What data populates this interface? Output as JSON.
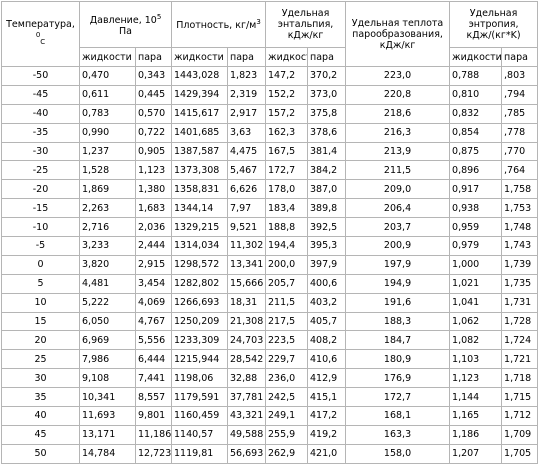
{
  "table": {
    "header": {
      "temperature": {
        "text": "Температура,",
        "sup": "0",
        "sub": "C"
      },
      "pressure": {
        "text": "Давление, 10",
        "sup": "5",
        "after": "Па"
      },
      "density": {
        "text": "Плотность, кг/м",
        "sup": "3"
      },
      "enthalpy": "Удельная энтальпия, кДж/кг",
      "heat": "Удельная теплота парообразования, кДж/кг",
      "entropy": "Удельная энтропия, кДж/(кг*K)"
    },
    "subheader": [
      "жидкости",
      "пара",
      "жидкости",
      "пара",
      "жидкости",
      "пара",
      "жидкости",
      "пара"
    ],
    "rows": [
      [
        "-50",
        "0,470",
        "0,343",
        "1443,028",
        "1,823",
        "147,2",
        "370,2",
        "223,0",
        "0,788",
        ",803"
      ],
      [
        "-45",
        "0,611",
        "0,445",
        "1429,394",
        "2,319",
        "152,2",
        "373,0",
        "220,8",
        "0,810",
        ",794"
      ],
      [
        "-40",
        "0,783",
        "0,570",
        "1415,617",
        "2,917",
        "157,2",
        "375,8",
        "218,6",
        "0,832",
        ",785"
      ],
      [
        "-35",
        "0,990",
        "0,722",
        "1401,685",
        "3,63",
        "162,3",
        "378,6",
        "216,3",
        "0,854",
        ",778"
      ],
      [
        "-30",
        "1,237",
        "0,905",
        "1387,587",
        "4,475",
        "167,5",
        "381,4",
        "213,9",
        "0,875",
        ",770"
      ],
      [
        "-25",
        "1,528",
        "1,123",
        "1373,308",
        "5,467",
        "172,7",
        "384,2",
        "211,5",
        "0,896",
        ",764"
      ],
      [
        "-20",
        "1,869",
        "1,380",
        "1358,831",
        "6,626",
        "178,0",
        "387,0",
        "209,0",
        "0,917",
        "1,758"
      ],
      [
        "-15",
        "2,263",
        "1,683",
        "1344,14",
        "7,97",
        "183,4",
        "389,8",
        "206,4",
        "0,938",
        "1,753"
      ],
      [
        "-10",
        "2,716",
        "2,036",
        "1329,215",
        "9,521",
        "188,8",
        "392,5",
        "203,7",
        "0,959",
        "1,748"
      ],
      [
        "-5",
        "3,233",
        "2,444",
        "1314,034",
        "11,302",
        "194,4",
        "395,3",
        "200,9",
        "0,979",
        "1,743"
      ],
      [
        "0",
        "3,820",
        "2,915",
        "1298,572",
        "13,341",
        "200,0",
        "397,9",
        "197,9",
        "1,000",
        "1,739"
      ],
      [
        "5",
        "4,481",
        "3,454",
        "1282,802",
        "15,666",
        "205,7",
        "400,6",
        "194,9",
        "1,021",
        "1,735"
      ],
      [
        "10",
        "5,222",
        "4,069",
        "1266,693",
        "18,31",
        "211,5",
        "403,2",
        "191,6",
        "1,041",
        "1,731"
      ],
      [
        "15",
        "6,050",
        "4,767",
        "1250,209",
        "21,308",
        "217,5",
        "405,7",
        "188,3",
        "1,062",
        "1,728"
      ],
      [
        "20",
        "6,969",
        "5,556",
        "1233,309",
        "24,703",
        "223,5",
        "408,2",
        "184,7",
        "1,082",
        "1,724"
      ],
      [
        "25",
        "7,986",
        "6,444",
        "1215,944",
        "28,542",
        "229,7",
        "410,6",
        "180,9",
        "1,103",
        "1,721"
      ],
      [
        "30",
        "9,108",
        "7,441",
        "1198,06",
        "32,88",
        "236,0",
        "412,9",
        "176,9",
        "1,123",
        "1,718"
      ],
      [
        "35",
        "10,341",
        "8,557",
        "1179,591",
        "37,781",
        "242,5",
        "415,1",
        "172,7",
        "1,144",
        "1,715"
      ],
      [
        "40",
        "11,693",
        "9,801",
        "1160,459",
        "43,321",
        "249,1",
        "417,2",
        "168,1",
        "1,165",
        "1,712"
      ],
      [
        "45",
        "13,171",
        "11,186",
        "1140,57",
        "49,588",
        "255,9",
        "419,2",
        "163,3",
        "1,186",
        "1,709"
      ],
      [
        "50",
        "14,784",
        "12,723",
        "1119,81",
        "56,693",
        "262,9",
        "421,0",
        "158,0",
        "1,207",
        "1,705"
      ]
    ]
  }
}
